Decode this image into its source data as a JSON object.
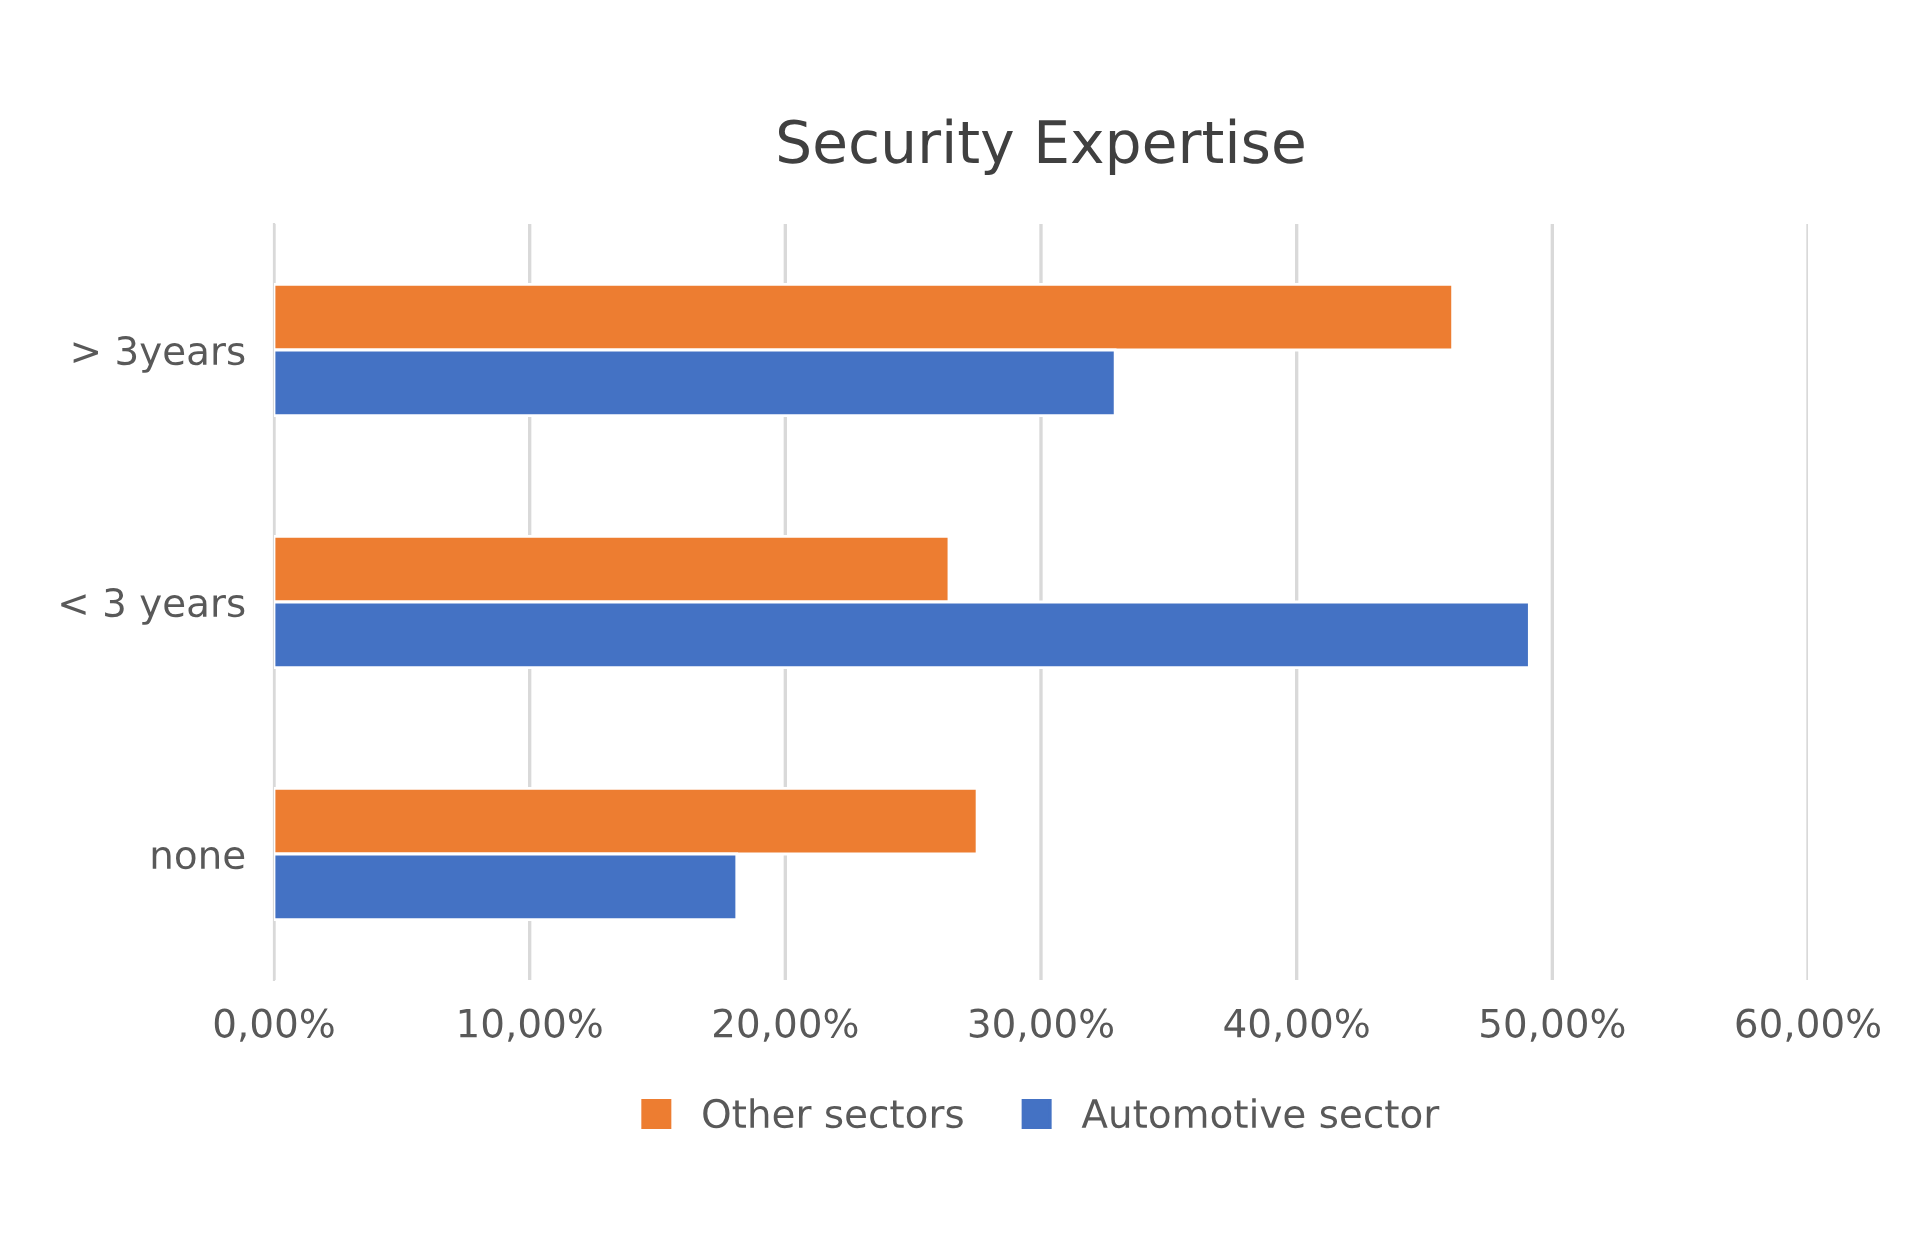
{
  "chart_data": {
    "type": "bar",
    "orientation": "horizontal",
    "title": "Security Expertise",
    "categories": [
      "> 3years",
      "< 3 years",
      "none"
    ],
    "series": [
      {
        "name": "Other sectors",
        "color": "#ed7d31",
        "values": [
          46.1,
          26.4,
          27.5
        ]
      },
      {
        "name": "Automotive sector",
        "color": "#4472c4",
        "values": [
          32.9,
          49.1,
          18.1
        ]
      }
    ],
    "xlim": [
      0,
      60
    ],
    "xticks": [
      {
        "value": 0,
        "label": "0,00%"
      },
      {
        "value": 10,
        "label": "10,00%"
      },
      {
        "value": 20,
        "label": "20,00%"
      },
      {
        "value": 30,
        "label": "30,00%"
      },
      {
        "value": 40,
        "label": "40,00%"
      },
      {
        "value": 50,
        "label": "50,00%"
      },
      {
        "value": 60,
        "label": "60,00%"
      }
    ],
    "grid": "x",
    "legend": "bottom"
  }
}
